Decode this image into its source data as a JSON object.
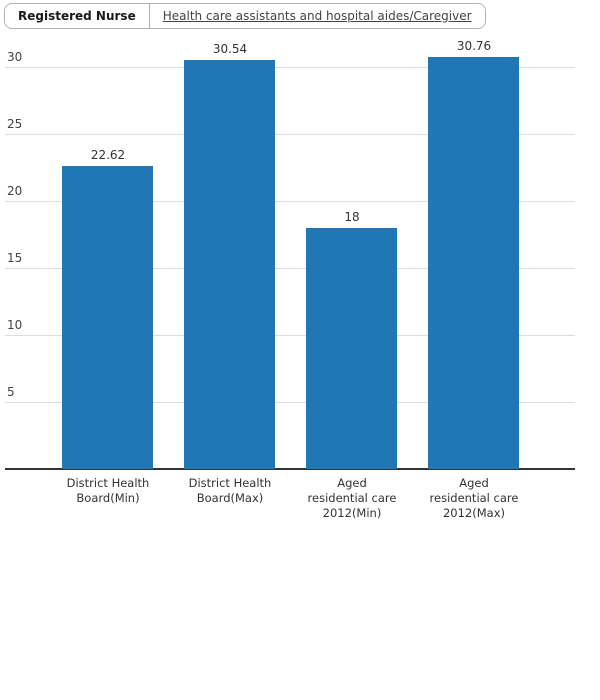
{
  "tabs": [
    {
      "label": "Registered Nurse",
      "active": true
    },
    {
      "label": "Health care assistants and hospital aides/Caregiver",
      "active": false
    }
  ],
  "chart_data": {
    "type": "bar",
    "title": "",
    "xlabel": "",
    "ylabel": "",
    "categories": [
      "District Health\nBoard(Min)",
      "District Health\nBoard(Max)",
      "Aged\nresidential care\n2012(Min)",
      "Aged\nresidential care\n2012(Max)"
    ],
    "values": [
      22.62,
      30.54,
      18,
      30.76
    ],
    "value_labels": [
      "22.62",
      "30.54",
      "18",
      "30.76"
    ],
    "yticks": [
      5,
      10,
      15,
      20,
      25,
      30
    ],
    "ylim": [
      0,
      32.4
    ],
    "bar_color": "#2077b4",
    "gridline_color": "#dddddd",
    "axis_color": "#333333",
    "grid": true,
    "legend_position": "none"
  }
}
